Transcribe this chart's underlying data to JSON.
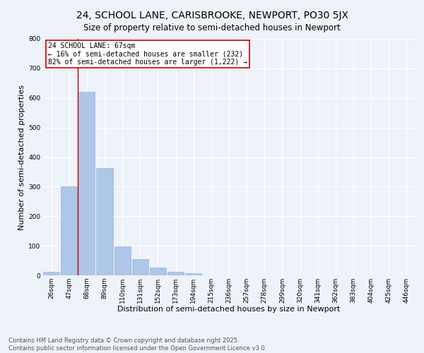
{
  "title": "24, SCHOOL LANE, CARISBROOKE, NEWPORT, PO30 5JX",
  "subtitle": "Size of property relative to semi-detached houses in Newport",
  "xlabel": "Distribution of semi-detached houses by size in Newport",
  "ylabel": "Number of semi-detached properties",
  "categories": [
    "26sqm",
    "47sqm",
    "68sqm",
    "89sqm",
    "110sqm",
    "131sqm",
    "152sqm",
    "173sqm",
    "194sqm",
    "215sqm",
    "236sqm",
    "257sqm",
    "278sqm",
    "299sqm",
    "320sqm",
    "341sqm",
    "362sqm",
    "383sqm",
    "404sqm",
    "425sqm",
    "446sqm"
  ],
  "values": [
    13,
    302,
    620,
    362,
    97,
    55,
    27,
    12,
    7,
    1,
    0,
    0,
    0,
    0,
    0,
    0,
    0,
    0,
    0,
    0,
    0
  ],
  "bar_color": "#aec6e8",
  "bar_edge_color": "#9ab8d8",
  "background_color": "#eef2f9",
  "grid_color": "#ffffff",
  "annotation_text_line1": "24 SCHOOL LANE: 67sqm",
  "annotation_text_line2": "← 16% of semi-detached houses are smaller (232)",
  "annotation_text_line3": "82% of semi-detached houses are larger (1,222) →",
  "annotation_box_color": "#cc0000",
  "vline_x": 1.5,
  "ylim": [
    0,
    800
  ],
  "yticks": [
    0,
    100,
    200,
    300,
    400,
    500,
    600,
    700,
    800
  ],
  "footer_line1": "Contains HM Land Registry data © Crown copyright and database right 2025.",
  "footer_line2": "Contains public sector information licensed under the Open Government Licence v3.0.",
  "title_fontsize": 10,
  "axis_label_fontsize": 8,
  "tick_fontsize": 6.5,
  "footer_fontsize": 6,
  "annotation_fontsize": 7
}
